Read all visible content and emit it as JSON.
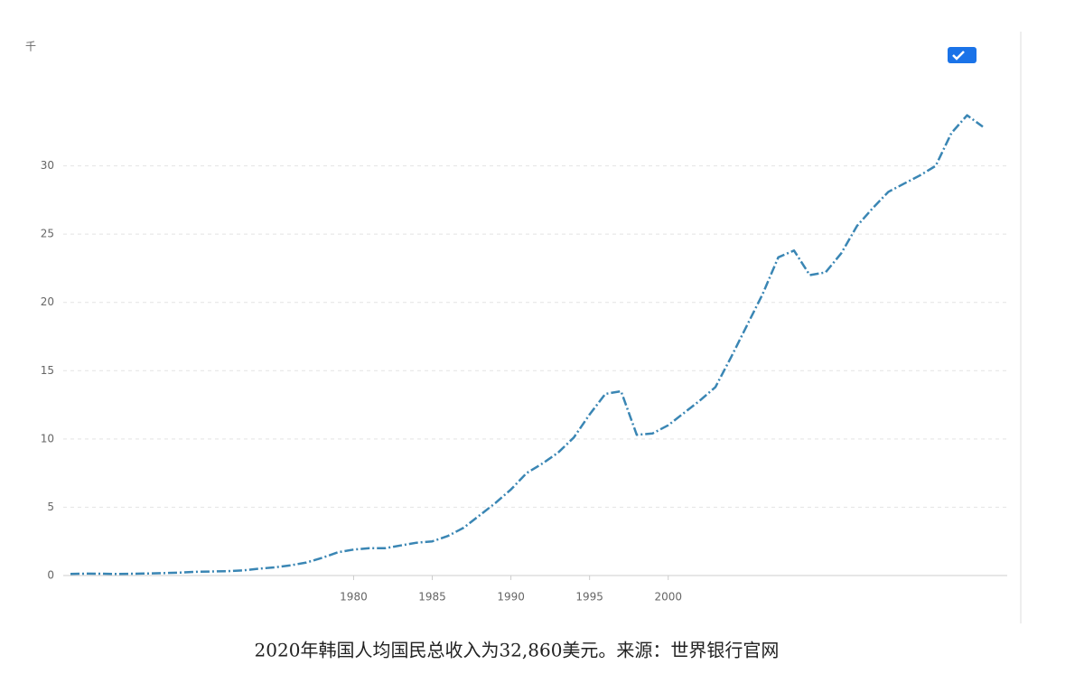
{
  "chart_data": {
    "type": "line",
    "y_unit_label": "千",
    "caption": "2020年韩国人均国民总收入为32,860美元。来源：世界银行官网",
    "x": [
      1962,
      1963,
      1964,
      1965,
      1966,
      1967,
      1968,
      1969,
      1970,
      1971,
      1972,
      1973,
      1974,
      1975,
      1976,
      1977,
      1978,
      1979,
      1980,
      1981,
      1982,
      1983,
      1984,
      1985,
      1986,
      1987,
      1988,
      1989,
      1990,
      1991,
      1992,
      1993,
      1994,
      1995,
      1996,
      1997,
      1998,
      1999,
      2000,
      2001,
      2002,
      2003,
      2004,
      2005,
      2006,
      2007,
      2008,
      2009,
      2010,
      2011,
      2012,
      2013,
      2014,
      2015,
      2016,
      2017,
      2018,
      2019,
      2020
    ],
    "values": [
      0.12,
      0.14,
      0.13,
      0.11,
      0.13,
      0.15,
      0.18,
      0.22,
      0.27,
      0.3,
      0.32,
      0.38,
      0.5,
      0.6,
      0.75,
      0.95,
      1.3,
      1.7,
      1.9,
      2.0,
      2.0,
      2.2,
      2.4,
      2.5,
      2.9,
      3.5,
      4.4,
      5.3,
      6.3,
      7.5,
      8.2,
      9.0,
      10.1,
      11.8,
      13.3,
      13.5,
      10.3,
      10.4,
      11.0,
      11.9,
      12.8,
      13.8,
      16.0,
      18.3,
      20.6,
      23.3,
      23.8,
      22.0,
      22.2,
      23.6,
      25.6,
      26.9,
      28.1,
      28.7,
      29.3,
      30.0,
      32.4,
      33.7,
      32.86
    ],
    "color": "#3a86b4",
    "xlim": [
      1962,
      2020
    ],
    "xticks": [
      1980,
      1985,
      1990,
      1995,
      2000
    ],
    "ylim": [
      0,
      35
    ],
    "yticks": [
      0,
      5,
      10,
      15,
      20,
      25,
      30
    ],
    "grid": true
  }
}
